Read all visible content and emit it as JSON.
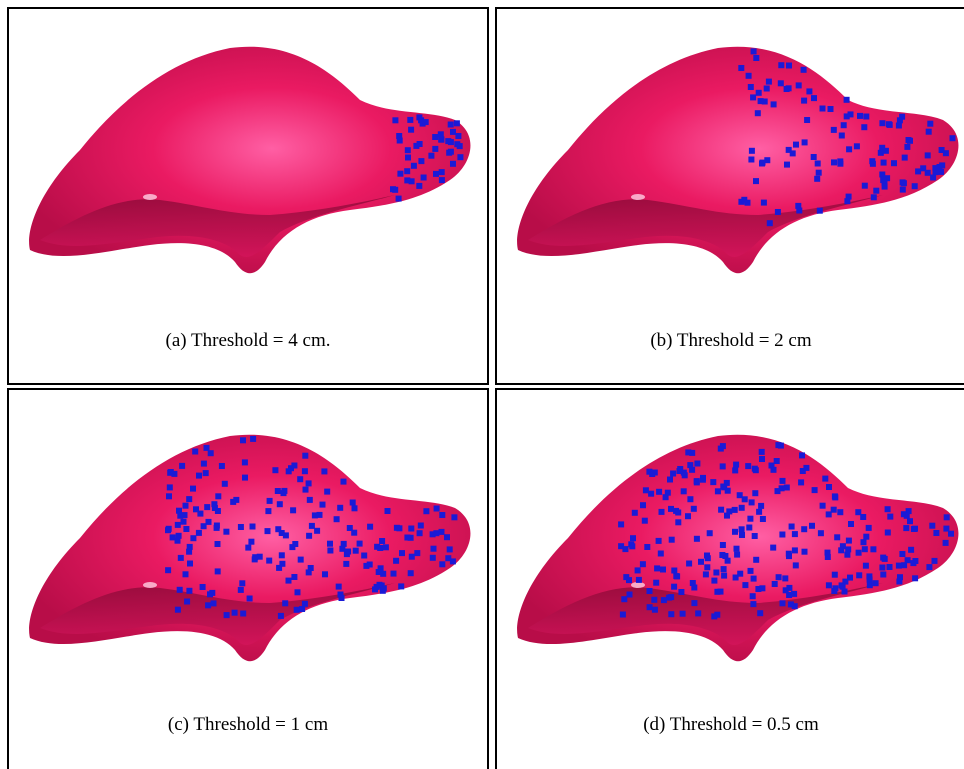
{
  "panels": [
    {
      "caption": "(a) Threshold = 4 cm."
    },
    {
      "caption": "(b) Threshold = 2 cm"
    },
    {
      "caption": "(c) Threshold = 1 cm"
    },
    {
      "caption": "(d) Threshold = 0.5 cm"
    }
  ]
}
